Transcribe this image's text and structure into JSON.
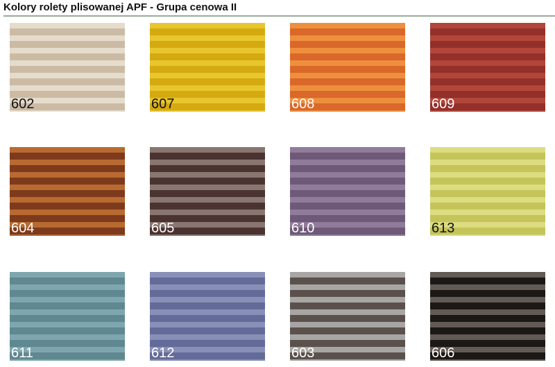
{
  "title": "Kolory rolety plisowanej APF - Grupa cenowa II",
  "swatches": [
    {
      "code": "602",
      "light": "#e6dccb",
      "dark": "#cbbba5",
      "text": "#111"
    },
    {
      "code": "607",
      "light": "#e8c62e",
      "dark": "#d4aa10",
      "text": "#111"
    },
    {
      "code": "608",
      "light": "#ee8f3e",
      "dark": "#d9682a",
      "text": "#fff"
    },
    {
      "code": "609",
      "light": "#b2463a",
      "dark": "#93302a",
      "text": "#fff"
    },
    {
      "code": "604",
      "light": "#b86a30",
      "dark": "#7e3a1c",
      "text": "#fff"
    },
    {
      "code": "605",
      "light": "#8a7670",
      "dark": "#4a3330",
      "text": "#fff"
    },
    {
      "code": "610",
      "light": "#907c9a",
      "dark": "#6e5a78",
      "text": "#fff"
    },
    {
      "code": "613",
      "light": "#dcdc80",
      "dark": "#c4c45a",
      "text": "#111"
    },
    {
      "code": "611",
      "light": "#7fa6ae",
      "dark": "#5f8890",
      "text": "#fff"
    },
    {
      "code": "612",
      "light": "#8890b8",
      "dark": "#636c98",
      "text": "#fff"
    },
    {
      "code": "603",
      "light": "#a8a6a4",
      "dark": "#5a514c",
      "text": "#fff"
    },
    {
      "code": "606",
      "light": "#625a54",
      "dark": "#1c1816",
      "text": "#fff"
    }
  ]
}
